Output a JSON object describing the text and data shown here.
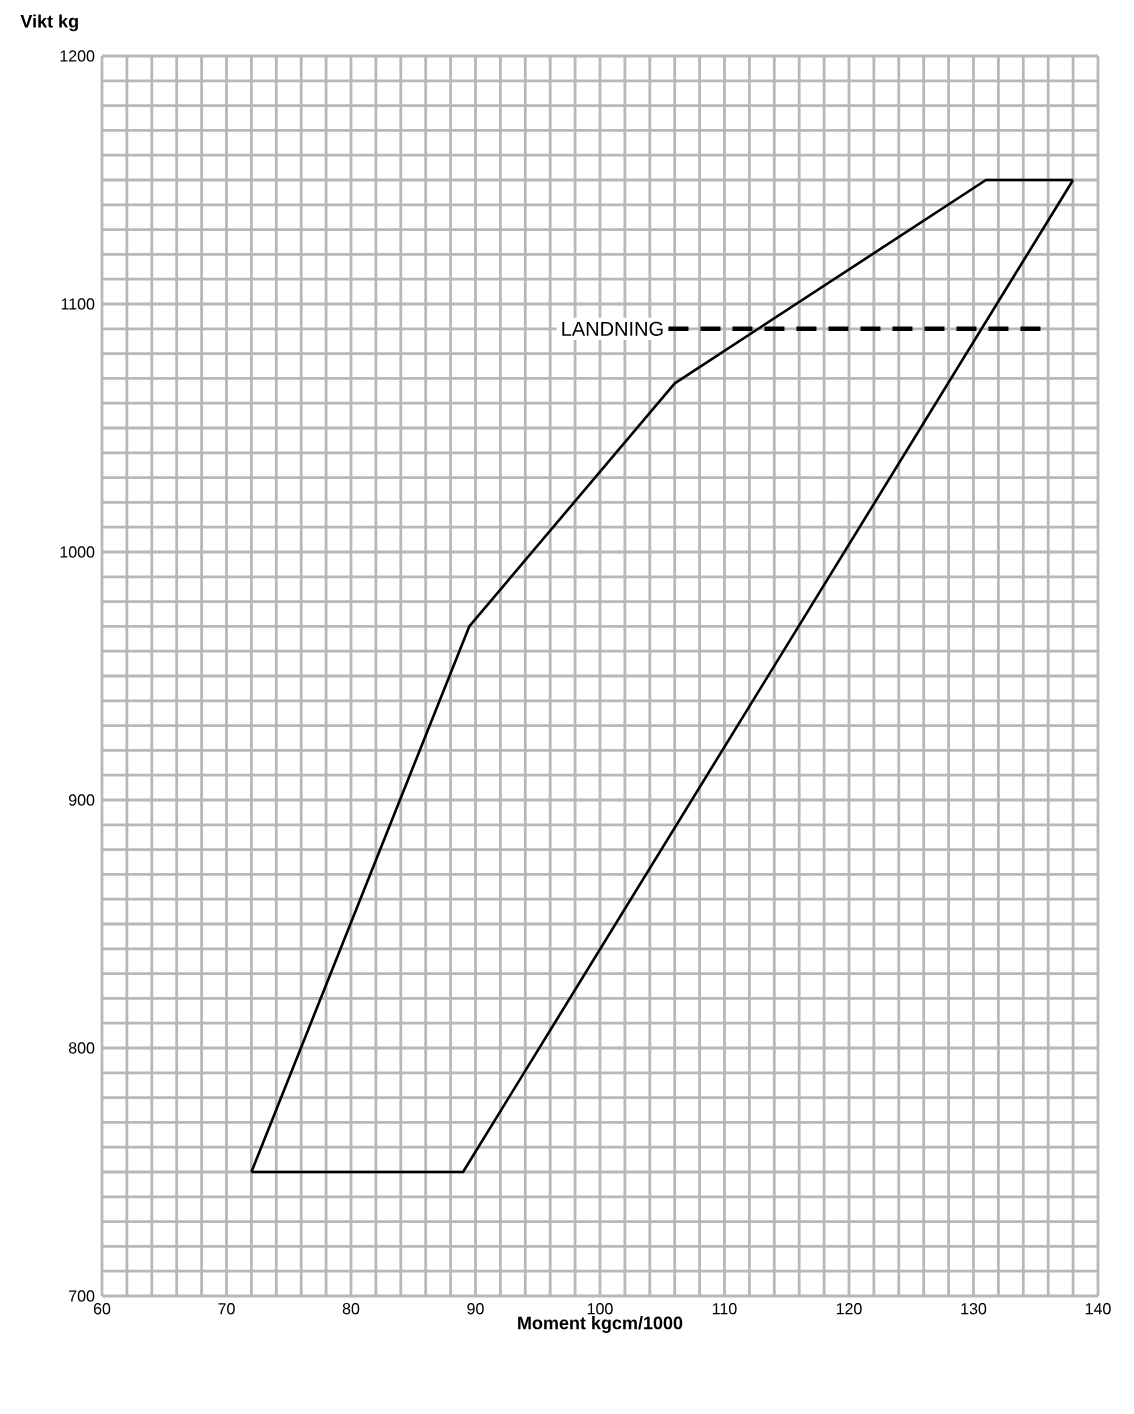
{
  "chart_data": {
    "type": "line",
    "xlabel": "Moment kgcm/1000",
    "ylabel": "Vikt kg",
    "xlim": [
      60,
      140
    ],
    "ylim": [
      700,
      1200
    ],
    "xticks": [
      60,
      70,
      80,
      90,
      100,
      110,
      120,
      130,
      140
    ],
    "yticks": [
      700,
      800,
      900,
      1000,
      1100,
      1200
    ],
    "grid": true,
    "legend": false,
    "marker": "none",
    "series": [
      {
        "color": "#000000",
        "line_style": "solid",
        "x": [
          72,
          89,
          138
        ],
        "values": [
          750,
          750,
          1150
        ]
      },
      {
        "color": "#000000",
        "line_style": "solid",
        "x": [
          72,
          89.5,
          106,
          131,
          138
        ],
        "values": [
          750,
          970,
          1068,
          1150,
          1150
        ]
      },
      {
        "name": "LANDNING",
        "color": "#000000",
        "line_style": "dashed",
        "x": [
          105.5,
          136
        ],
        "values": [
          1090,
          1090
        ]
      }
    ]
  }
}
